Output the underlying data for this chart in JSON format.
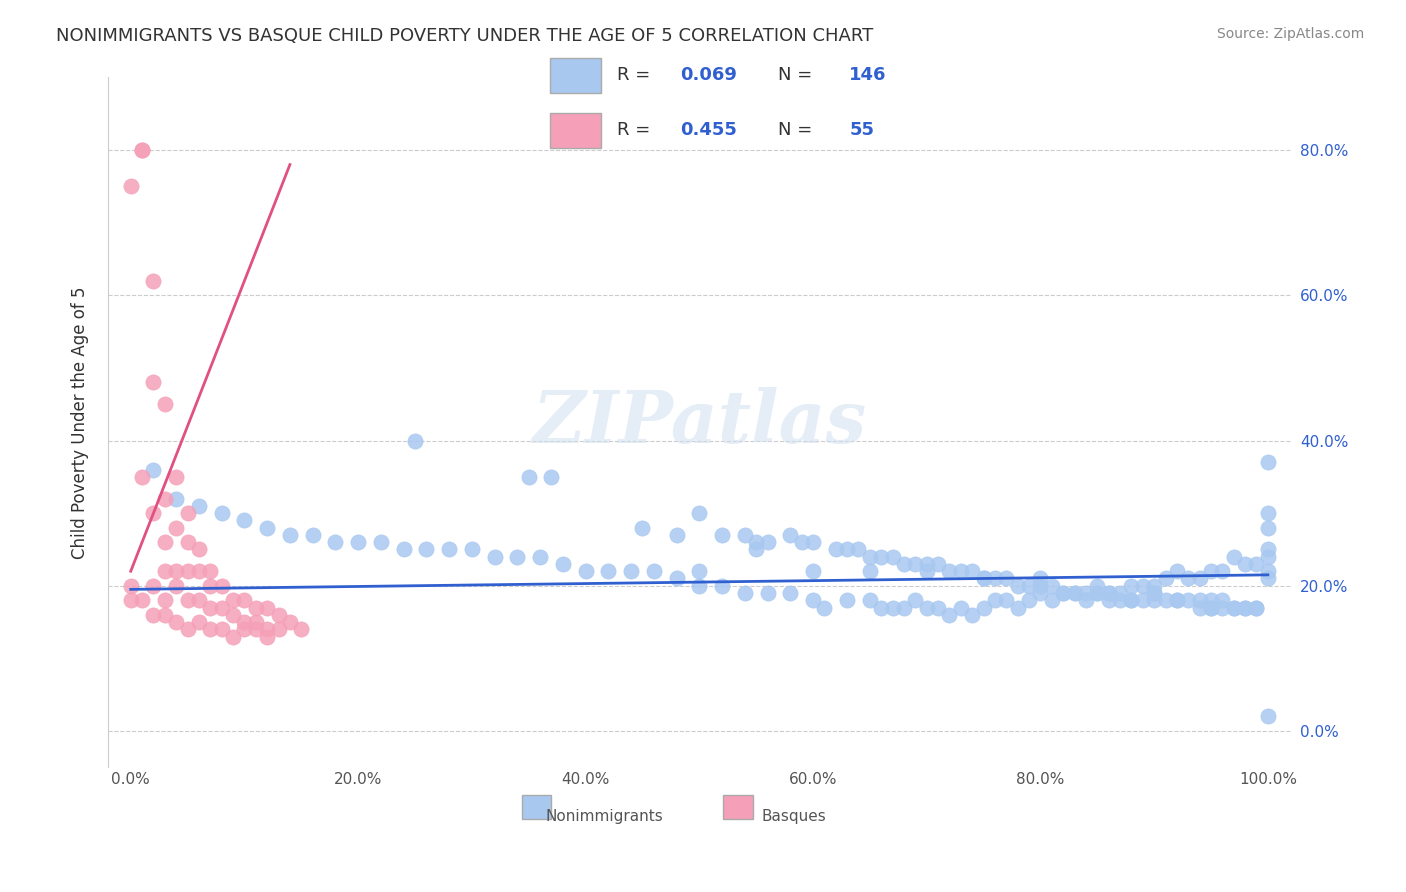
{
  "title": "NONIMMIGRANTS VS BASQUE CHILD POVERTY UNDER THE AGE OF 5 CORRELATION CHART",
  "source": "Source: ZipAtlas.com",
  "ylabel": "Child Poverty Under the Age of 5",
  "xlabel": "",
  "xlim": [
    -2,
    102
  ],
  "ylim": [
    -5,
    90
  ],
  "yticks": [
    0,
    20,
    40,
    60,
    80
  ],
  "ytick_labels": [
    "0.0%",
    "20.0%",
    "40.0%",
    "60.0%",
    "80.0%"
  ],
  "xticks": [
    0,
    20,
    40,
    60,
    80,
    100
  ],
  "xtick_labels": [
    "0.0%",
    "20.0%",
    "40.0%",
    "60.0%",
    "80.0%",
    "100.0%"
  ],
  "blue_color": "#a8c8f0",
  "pink_color": "#f5a0b8",
  "blue_line_color": "#3060d0",
  "pink_line_color": "#e05080",
  "R_blue": 0.069,
  "N_blue": 146,
  "R_pink": 0.455,
  "N_pink": 55,
  "legend_label_blue": "Nonimmigrants",
  "legend_label_pink": "Basques",
  "watermark": "ZIPatlas",
  "blue_scatter_x": [
    25,
    35,
    37,
    50,
    55,
    58,
    60,
    62,
    63,
    65,
    66,
    67,
    68,
    70,
    72,
    73,
    74,
    75,
    76,
    77,
    78,
    79,
    80,
    81,
    82,
    83,
    84,
    85,
    86,
    87,
    88,
    89,
    90,
    91,
    92,
    93,
    94,
    95,
    96,
    97,
    98,
    99,
    100,
    45,
    48,
    52,
    54,
    56,
    59,
    64,
    69,
    71,
    86,
    88,
    90,
    92,
    94,
    95,
    96,
    97,
    98,
    99,
    100,
    100,
    100,
    100,
    100,
    99,
    98,
    97,
    96,
    95,
    94,
    93,
    92,
    91,
    90,
    89,
    88,
    87,
    86,
    85,
    84,
    83,
    82,
    81,
    80,
    79,
    78,
    77,
    76,
    75,
    74,
    73,
    72,
    71,
    70,
    69,
    68,
    67,
    66,
    65,
    63,
    61,
    60,
    58,
    56,
    54,
    52,
    50,
    48,
    46,
    44,
    42,
    40,
    38,
    36,
    34,
    32,
    30,
    28,
    26,
    24,
    22,
    20,
    18,
    16,
    14,
    12,
    10,
    8,
    6,
    4,
    2,
    50,
    55,
    60,
    65,
    70,
    75,
    80,
    85,
    90,
    95,
    100,
    100
  ],
  "blue_scatter_y": [
    40,
    35,
    35,
    30,
    26,
    27,
    26,
    25,
    25,
    24,
    24,
    24,
    23,
    23,
    22,
    22,
    22,
    21,
    21,
    21,
    20,
    20,
    20,
    20,
    19,
    19,
    19,
    19,
    18,
    18,
    18,
    18,
    18,
    18,
    18,
    18,
    17,
    17,
    17,
    17,
    17,
    17,
    37,
    28,
    27,
    27,
    27,
    26,
    26,
    25,
    23,
    23,
    19,
    18,
    19,
    18,
    18,
    17,
    18,
    17,
    17,
    17,
    25,
    22,
    21,
    28,
    24,
    23,
    23,
    24,
    22,
    22,
    21,
    21,
    22,
    21,
    20,
    20,
    20,
    19,
    19,
    19,
    18,
    19,
    19,
    18,
    19,
    18,
    17,
    18,
    18,
    17,
    16,
    17,
    16,
    17,
    17,
    18,
    17,
    17,
    17,
    18,
    18,
    17,
    18,
    19,
    19,
    19,
    20,
    20,
    21,
    22,
    22,
    22,
    22,
    23,
    24,
    24,
    24,
    25,
    25,
    25,
    25,
    26,
    26,
    26,
    27,
    27,
    28,
    29,
    30,
    31,
    32,
    36,
    22,
    25,
    22,
    22,
    22,
    21,
    21,
    20,
    19,
    18,
    30,
    2
  ],
  "pink_scatter_x": [
    0,
    1,
    1,
    2,
    2,
    2,
    3,
    3,
    3,
    3,
    4,
    4,
    4,
    4,
    5,
    5,
    5,
    5,
    6,
    6,
    6,
    7,
    7,
    7,
    8,
    8,
    9,
    9,
    10,
    10,
    11,
    11,
    12,
    12,
    13,
    13,
    14,
    15,
    1,
    2,
    3,
    0,
    0,
    1,
    2,
    3,
    4,
    5,
    6,
    7,
    8,
    9,
    10,
    11,
    12
  ],
  "pink_scatter_y": [
    75,
    80,
    80,
    62,
    48,
    30,
    45,
    32,
    26,
    22,
    35,
    28,
    22,
    20,
    30,
    26,
    22,
    18,
    25,
    22,
    18,
    22,
    20,
    17,
    20,
    17,
    18,
    16,
    18,
    15,
    17,
    15,
    17,
    14,
    16,
    14,
    15,
    14,
    35,
    20,
    18,
    20,
    18,
    18,
    16,
    16,
    15,
    14,
    15,
    14,
    14,
    13,
    14,
    14,
    13
  ],
  "blue_trend_x": [
    0,
    100
  ],
  "blue_trend_y": [
    19.5,
    21.5
  ],
  "pink_trend_x": [
    0,
    14
  ],
  "pink_trend_y": [
    22,
    78
  ]
}
